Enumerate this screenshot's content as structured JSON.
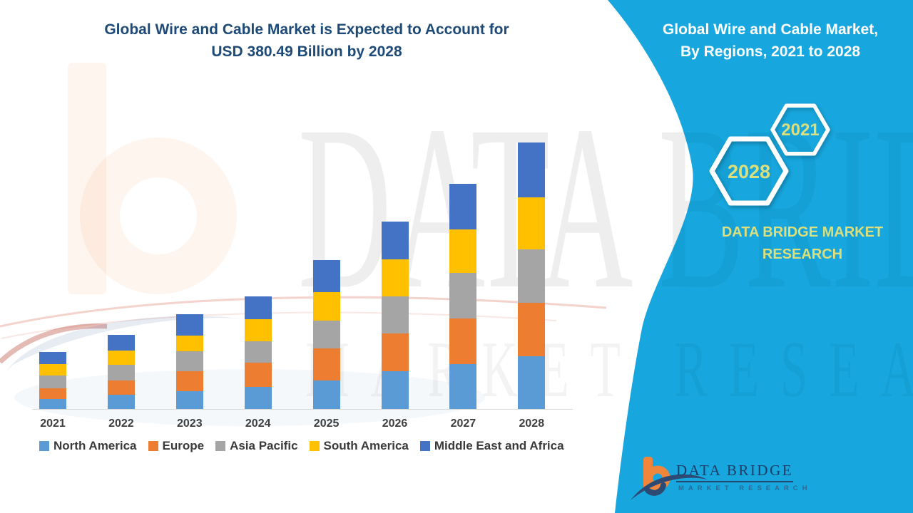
{
  "title": {
    "line1": "Global Wire and Cable Market is Expected to Account for",
    "line2": "USD 380.49 Billion by 2028"
  },
  "panel": {
    "title_line1": "Global Wire and Cable Market,",
    "title_line2": "By Regions, 2021 to 2028",
    "hexagons": {
      "small_year": "2021",
      "large_year": "2028"
    },
    "brand_line1": "DATA BRIDGE MARKET",
    "brand_line2": "RESEARCH",
    "logo_title": "DATA BRIDGE",
    "logo_subtitle": "MARKET RESEARCH",
    "background_color": "#17A7DE",
    "accent_text_color": "#DCDF7B"
  },
  "watermark": {
    "line1": "DATA BRIDGE",
    "line2": "MARKET RESEARCH"
  },
  "chart_data": {
    "type": "bar",
    "stacked": true,
    "title": "Global Wire and Cable Market is Expected to Account for USD 380.49 Billion by 2028",
    "unit": "USD Billion",
    "categories": [
      "2021",
      "2022",
      "2023",
      "2024",
      "2025",
      "2026",
      "2027",
      "2028"
    ],
    "series": [
      {
        "name": "North America",
        "color": "#5B9BD5",
        "values": [
          14,
          20,
          25,
          32,
          41,
          54,
          64,
          75
        ]
      },
      {
        "name": "Europe",
        "color": "#ED7D31",
        "values": [
          16,
          21,
          29,
          34,
          45,
          54,
          65,
          77
        ]
      },
      {
        "name": "Asia Pacific",
        "color": "#A5A5A5",
        "values": [
          18,
          22,
          28,
          31,
          40,
          53,
          65,
          76
        ]
      },
      {
        "name": "South America",
        "color": "#FFC000",
        "values": [
          16,
          20,
          23,
          31,
          41,
          53,
          62,
          74
        ]
      },
      {
        "name": "Middle East and Africa",
        "color": "#4472C4",
        "values": [
          17,
          23,
          30,
          33,
          46,
          54,
          65,
          78.49
        ]
      }
    ],
    "totals": [
      81,
      106,
      135,
      161,
      213,
      268,
      321,
      380.49
    ],
    "ylim": [
      0,
      380.49
    ],
    "gridlines": false,
    "y_axis_visible": false,
    "legend_position": "bottom"
  }
}
